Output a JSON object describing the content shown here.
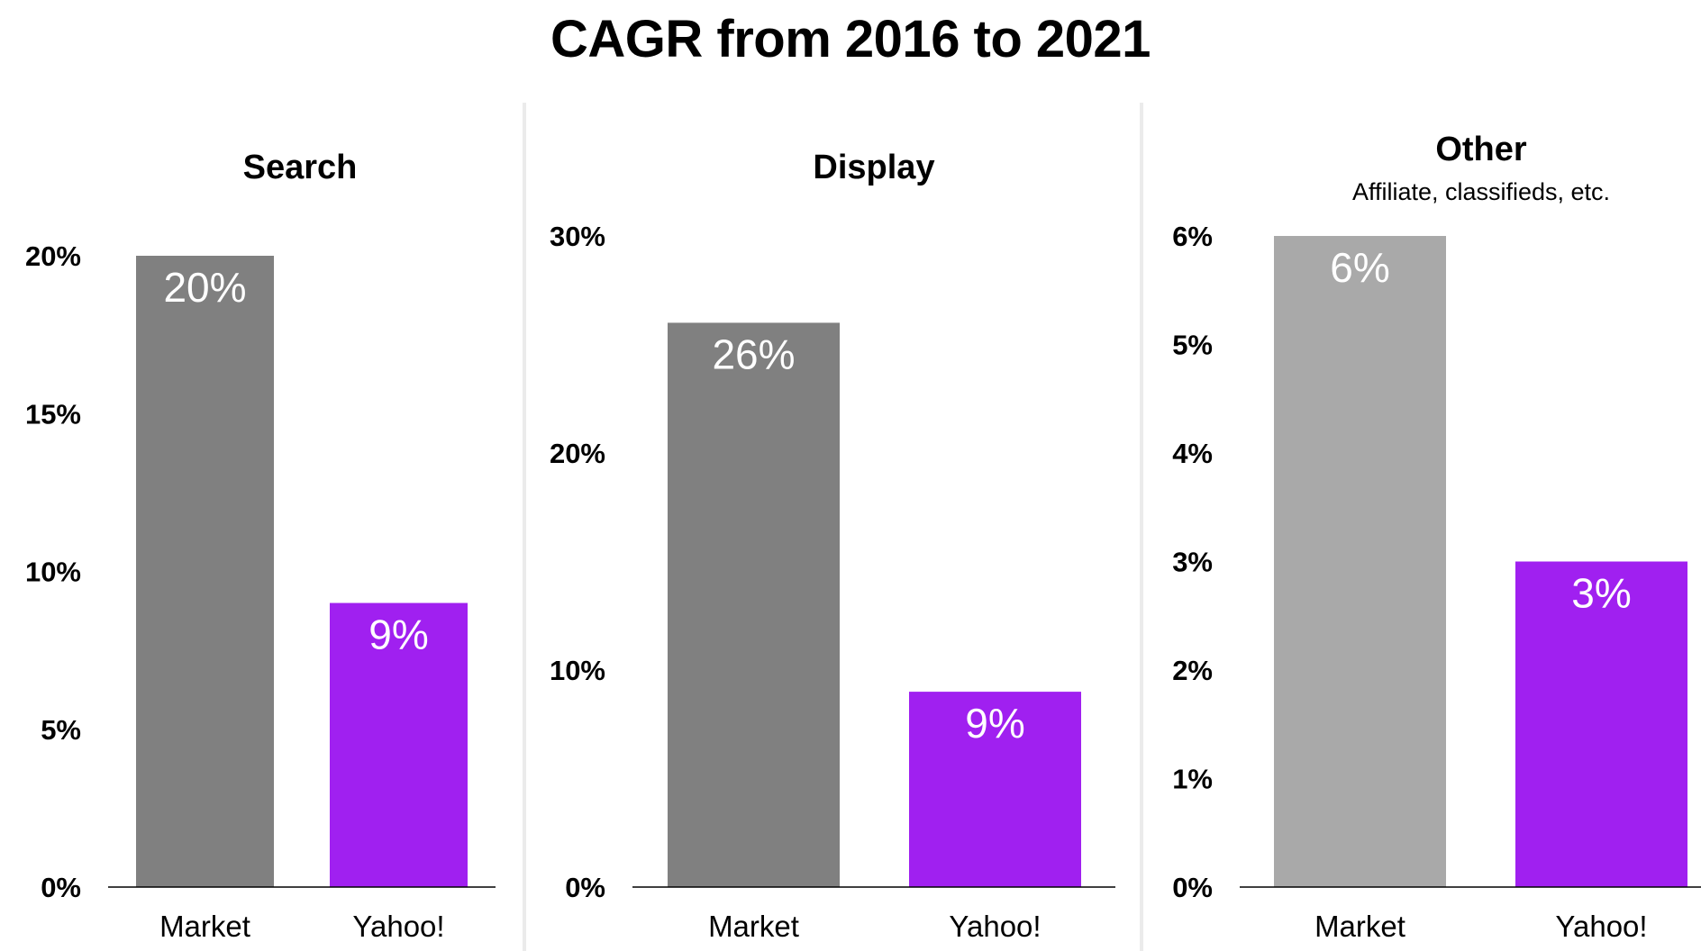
{
  "title": "CAGR from 2016 to 2021",
  "colors": {
    "market_dark": "#808080",
    "market_light": "#a9a9a9",
    "yahoo": "#a020f0",
    "axis": "#000000",
    "separator": "#ebebeb"
  },
  "chart_data": [
    {
      "type": "bar",
      "title": "Search",
      "subtitle": "",
      "categories": [
        "Market",
        "Yahoo!"
      ],
      "values": [
        20,
        9
      ],
      "data_labels": [
        "20%",
        "9%"
      ],
      "ylim": [
        0,
        20
      ],
      "yticks": [
        "0%",
        "5%",
        "10%",
        "15%",
        "20%"
      ],
      "ytick_values": [
        0,
        5,
        10,
        15,
        20
      ],
      "bar_colors": [
        "#808080",
        "#a020f0"
      ],
      "grid": false
    },
    {
      "type": "bar",
      "title": "Display",
      "subtitle": "",
      "categories": [
        "Market",
        "Yahoo!"
      ],
      "values": [
        26,
        9
      ],
      "data_labels": [
        "26%",
        "9%"
      ],
      "ylim": [
        0,
        30
      ],
      "yticks": [
        "0%",
        "10%",
        "20%",
        "30%"
      ],
      "ytick_values": [
        0,
        10,
        20,
        30
      ],
      "bar_colors": [
        "#808080",
        "#a020f0"
      ],
      "grid": false
    },
    {
      "type": "bar",
      "title": "Other",
      "subtitle": "Affiliate, classifieds, etc.",
      "categories": [
        "Market",
        "Yahoo!"
      ],
      "values": [
        6,
        3
      ],
      "data_labels": [
        "6%",
        "3%"
      ],
      "ylim": [
        0,
        6
      ],
      "yticks": [
        "0%",
        "1%",
        "2%",
        "3%",
        "4%",
        "5%",
        "6%"
      ],
      "ytick_values": [
        0,
        1,
        2,
        3,
        4,
        5,
        6
      ],
      "bar_colors": [
        "#a9a9a9",
        "#a020f0"
      ],
      "grid": false
    }
  ]
}
